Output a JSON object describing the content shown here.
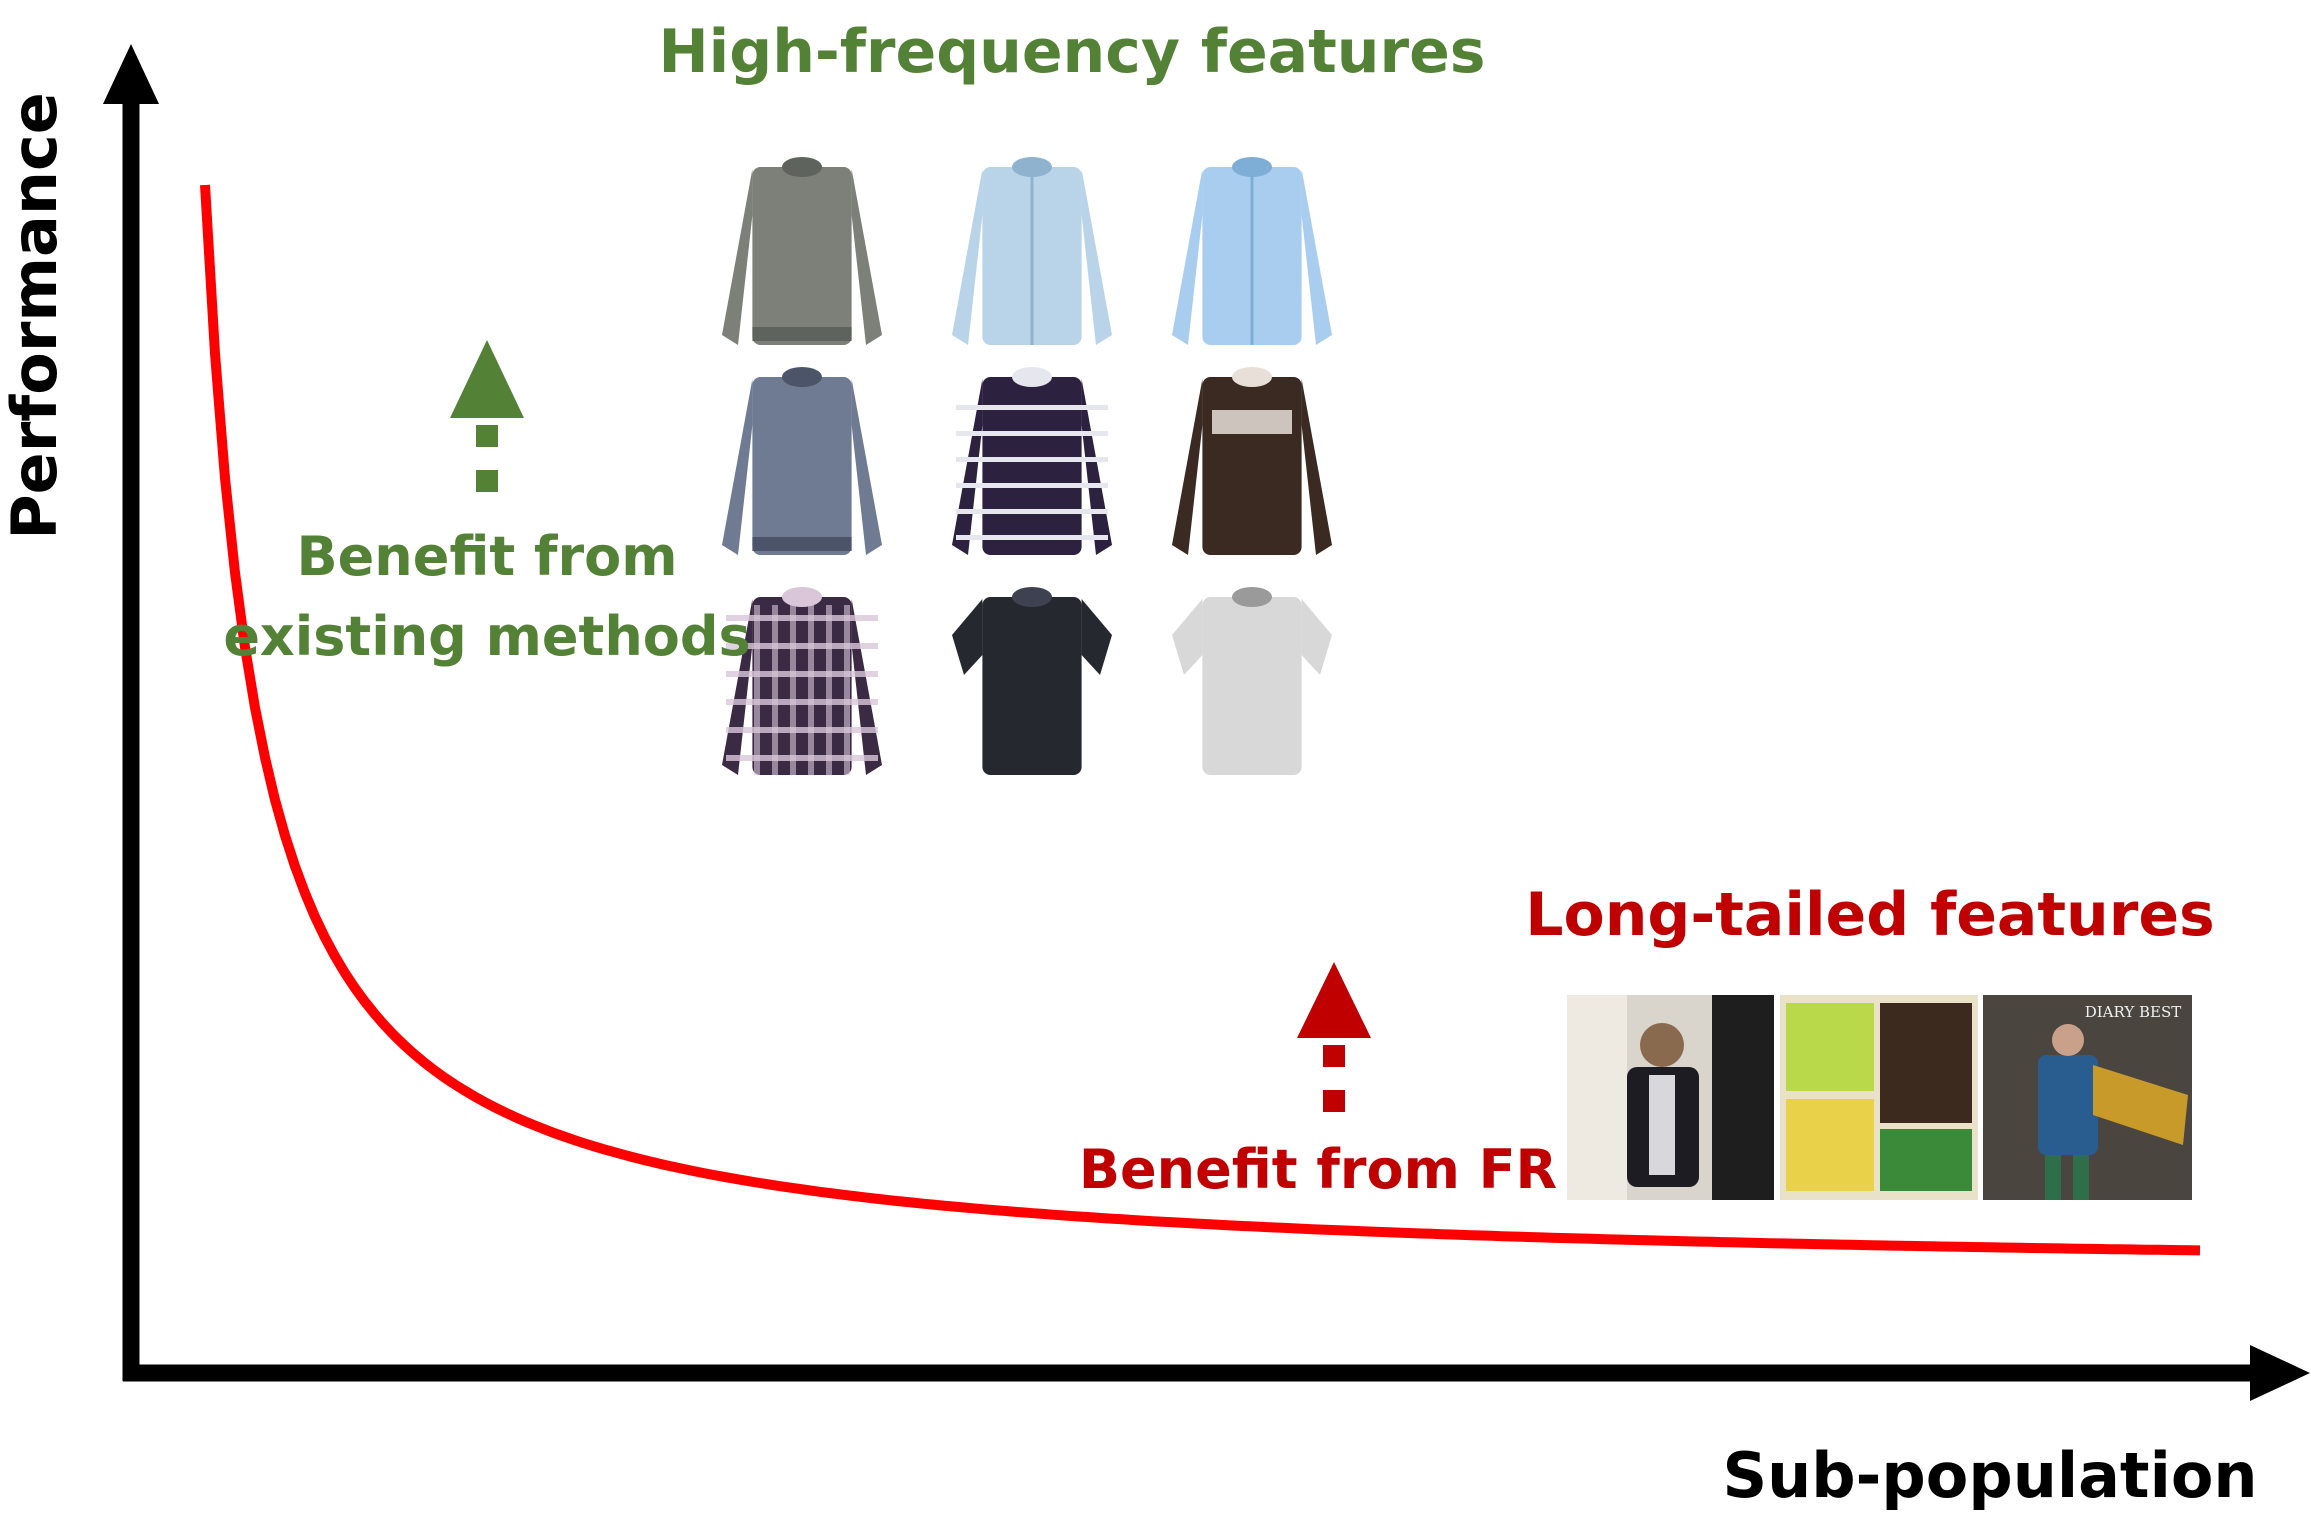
{
  "axes": {
    "y_label": "Performance",
    "x_label": "Sub-population"
  },
  "high_frequency": {
    "title": "High-frequency features",
    "benefit_line1": "Benefit from",
    "benefit_line2": "existing methods",
    "thumbnails": [
      {
        "name": "grey-turtleneck-sweater",
        "color": "#7c8079",
        "accent": "#5f635d",
        "kind": "sweater"
      },
      {
        "name": "light-blue-shirt",
        "color": "#b9d3e8",
        "accent": "#8fb3cf",
        "kind": "shirt"
      },
      {
        "name": "light-blue-shirt-open",
        "color": "#a8cdee",
        "accent": "#7eaed6",
        "kind": "shirt"
      },
      {
        "name": "knit-sweater",
        "color": "#6f7a93",
        "accent": "#4b5468",
        "kind": "sweater"
      },
      {
        "name": "striped-navy-sweater",
        "color": "#2c2240",
        "accent": "#e6e6ee",
        "kind": "striped"
      },
      {
        "name": "brown-graphic-tee",
        "color": "#3a2a22",
        "accent": "#e8e0d8",
        "kind": "tee"
      },
      {
        "name": "plaid-shirt",
        "color": "#3b2a44",
        "accent": "#d9c7d9",
        "kind": "plaid"
      },
      {
        "name": "black-short-sleeve-shirt",
        "color": "#262830",
        "accent": "#3e4150",
        "kind": "short"
      },
      {
        "name": "white-print-short-sleeve-shirt",
        "color": "#d8d8d8",
        "accent": "#9a9a9a",
        "kind": "short"
      }
    ]
  },
  "long_tail": {
    "title": "Long-tailed features",
    "benefit": "Benefit from FR",
    "photos": [
      {
        "name": "man-black-cardigan-photo",
        "bg": "#d9d4cc",
        "fg": "#1c1c22"
      },
      {
        "name": "lace-top-collage-photo",
        "bg": "#e9e2c9",
        "fg": "#3a8a3a"
      },
      {
        "name": "printed-scarf-model-photo",
        "bg": "#4a453f",
        "fg": "#2a5d8f",
        "caption": "DIARY BEST"
      }
    ]
  },
  "colors": {
    "curve": "#ff0000",
    "green": "#538135",
    "red": "#c00000",
    "axis": "#000000"
  }
}
